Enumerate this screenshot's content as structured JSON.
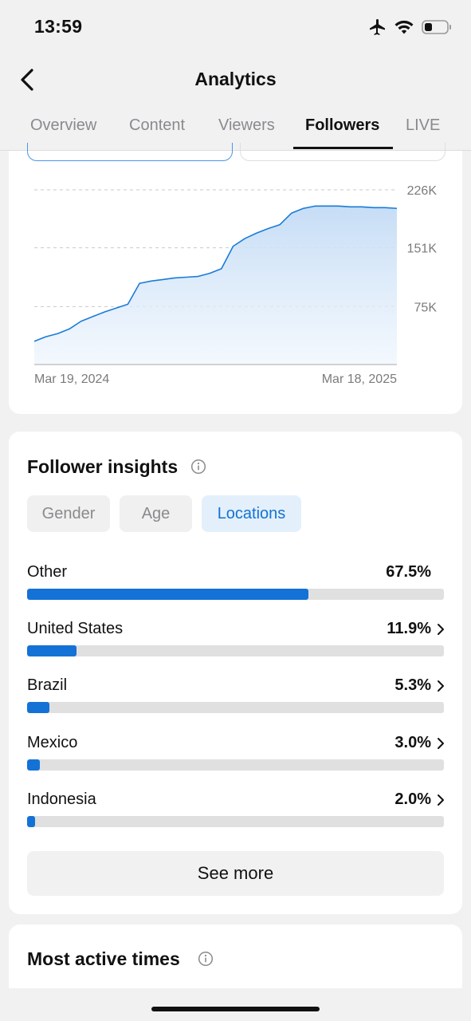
{
  "status": {
    "time": "13:59"
  },
  "header": {
    "title": "Analytics"
  },
  "tabs": [
    {
      "label": "Overview"
    },
    {
      "label": "Content"
    },
    {
      "label": "Viewers"
    },
    {
      "label": "Followers",
      "active": true
    },
    {
      "label": "LIVE"
    }
  ],
  "chart_data": {
    "type": "area",
    "x_start": "Mar 19, 2024",
    "x_end": "Mar 18, 2025",
    "y_ticks": [
      "226K",
      "151K",
      "75K"
    ],
    "y_tick_values": [
      226000,
      151000,
      75000
    ],
    "ylim": [
      0,
      226000
    ],
    "grid": true,
    "color": "#1a7bd9",
    "x_labels": [
      "Mar 19, 2024",
      "Mar 18, 2025"
    ],
    "series": [
      {
        "values": [
          30000,
          36000,
          40000,
          46000,
          56000,
          62000,
          68000,
          73000,
          78000,
          105000,
          108000,
          110000,
          112000,
          113000,
          114000,
          118000,
          124000,
          153000,
          163000,
          170000,
          176000,
          181000,
          196000,
          202000,
          205000,
          205000,
          205000,
          204000,
          204000,
          203000,
          203000,
          202000
        ]
      }
    ]
  },
  "insights": {
    "title": "Follower insights",
    "filters": [
      {
        "label": "Gender"
      },
      {
        "label": "Age"
      },
      {
        "label": "Locations",
        "active": true
      }
    ],
    "locations": [
      {
        "name": "Other",
        "percent": "67.5%",
        "value": 0.675,
        "chevron": false
      },
      {
        "name": "United States",
        "percent": "11.9%",
        "value": 0.119,
        "chevron": true
      },
      {
        "name": "Brazil",
        "percent": "5.3%",
        "value": 0.053,
        "chevron": true
      },
      {
        "name": "Mexico",
        "percent": "3.0%",
        "value": 0.03,
        "chevron": true
      },
      {
        "name": "Indonesia",
        "percent": "2.0%",
        "value": 0.02,
        "chevron": true
      }
    ],
    "see_more_label": "See more"
  },
  "active_times": {
    "title": "Most active times"
  },
  "colors": {
    "accent": "#1472d6",
    "pill_active_bg": "#e3f0fc",
    "track": "#e0e0e0"
  }
}
